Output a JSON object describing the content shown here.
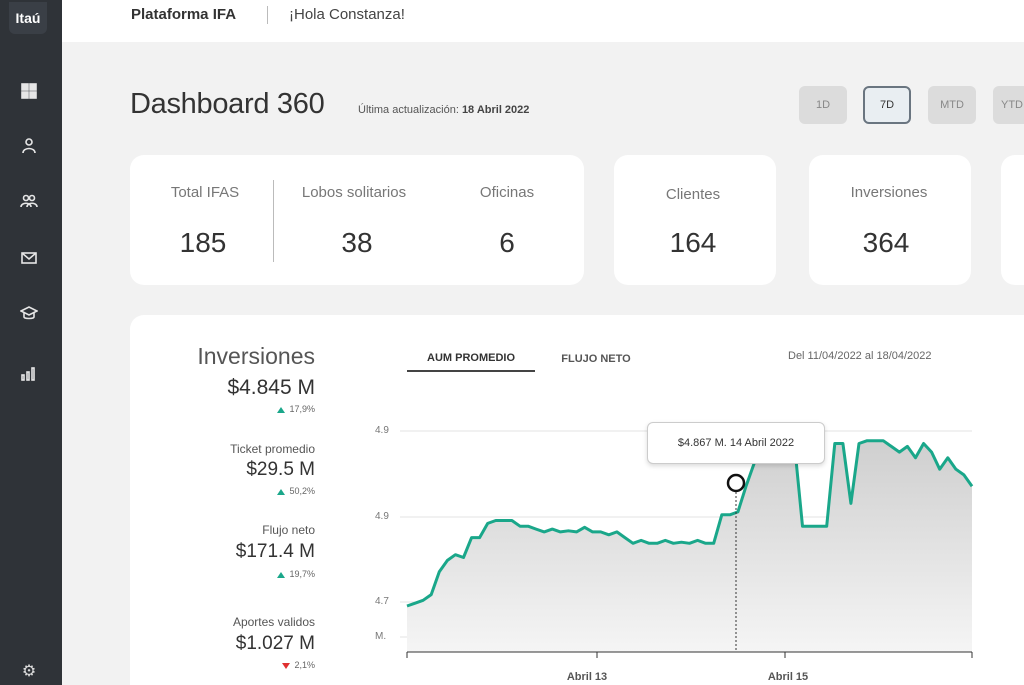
{
  "app": {
    "logo": "Itaú",
    "title": "Plataforma IFA",
    "greeting": "¡Hola Constanza!"
  },
  "sidebar": {
    "icons": [
      "dashboard-icon",
      "advisor-icon",
      "people-icon",
      "mail-icon",
      "graduation-icon",
      "bar-chart-icon",
      "settings-icon"
    ]
  },
  "header": {
    "title": "Dashboard 360",
    "updated_label": "Última actualización:",
    "updated_value": "18 Abril 2022"
  },
  "range": {
    "options": [
      "1D",
      "7D",
      "MTD",
      "YTD"
    ],
    "selected": "7D"
  },
  "stats": {
    "total_ifas": {
      "label": "Total IFAS",
      "value": "185"
    },
    "lobos": {
      "label": "Lobos solitarios",
      "value": "38"
    },
    "oficinas": {
      "label": "Oficinas",
      "value": "6"
    },
    "clientes": {
      "label": "Clientes",
      "value": "164"
    },
    "inversiones": {
      "label": "Inversiones",
      "value": "364"
    }
  },
  "metrics": {
    "title": "Inversiones",
    "items": [
      {
        "label": "",
        "value": "$4.845 M",
        "change": "17,9%",
        "direction": "up"
      },
      {
        "label": "Ticket promedio",
        "value": "$29.5 M",
        "change": "50,2%",
        "direction": "up"
      },
      {
        "label": "Flujo neto",
        "value": "$171.4 M",
        "change": "19,7%",
        "direction": "up"
      },
      {
        "label": "Aportes validos",
        "value": "$1.027 M",
        "change": "2,1%",
        "direction": "down"
      }
    ]
  },
  "chart_tabs": {
    "tab1": "AUM PROMEDIO",
    "tab2": "FLUJO NETO",
    "date_from": "Del 11/04/2022 al 18/04/2022"
  },
  "tooltip": {
    "text": "$4.867 M. 14 Abril 2022"
  },
  "colors": {
    "line": "#1aa78a",
    "sidebar": "#2f3338",
    "up": "#1aa78a",
    "down": "#e03030"
  },
  "chart_data": {
    "type": "area",
    "y_ticks": [
      "4.9",
      "4.9",
      "4.7",
      "M."
    ],
    "x_ticks": [
      "Abril 13",
      "Abril 15"
    ],
    "series": [
      {
        "values": [
          4.7,
          4.705,
          4.71,
          4.72,
          4.76,
          4.78,
          4.79,
          4.785,
          4.82,
          4.82,
          4.845,
          4.85,
          4.85,
          4.85,
          4.84,
          4.84,
          4.835,
          4.83,
          4.835,
          4.83,
          4.832,
          4.83,
          4.838,
          4.83,
          4.83,
          4.825,
          4.83,
          4.82,
          4.81,
          4.815,
          4.81,
          4.81,
          4.815,
          4.81,
          4.812,
          4.81,
          4.815,
          4.81,
          4.81,
          4.86,
          4.86,
          4.865,
          4.91,
          4.95,
          4.97,
          4.975,
          4.985,
          4.985,
          4.985,
          4.84,
          4.84,
          4.84,
          4.84,
          4.985,
          4.985,
          4.88,
          4.985,
          4.99,
          4.99,
          4.99,
          4.98,
          4.97,
          4.98,
          4.96,
          4.985,
          4.97,
          4.94,
          4.96,
          4.94,
          4.93,
          4.91
        ]
      }
    ]
  }
}
